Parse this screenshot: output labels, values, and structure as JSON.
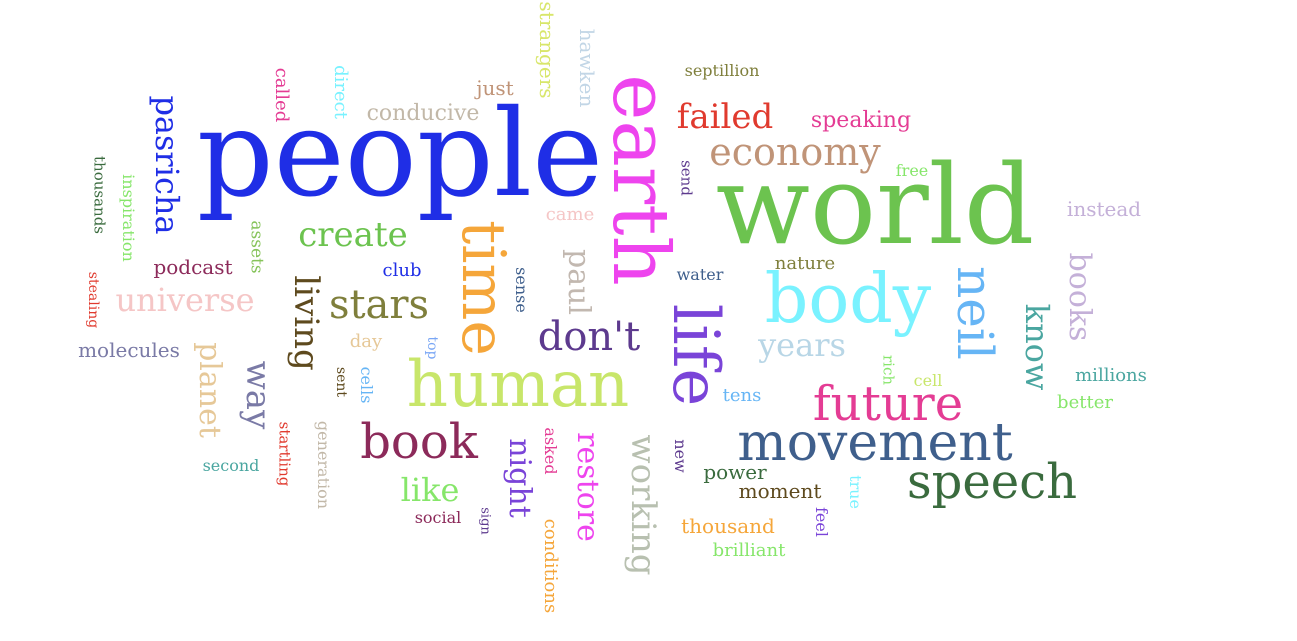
{
  "words": [
    {
      "text": "people",
      "color": "#1f2ee6"
    },
    {
      "text": "world",
      "color": "#6cc34f"
    },
    {
      "text": "earth",
      "color": "#ee44ee"
    },
    {
      "text": "life",
      "color": "#7a44d8"
    },
    {
      "text": "human",
      "color": "#c8e66a"
    },
    {
      "text": "body",
      "color": "#79f2ff"
    },
    {
      "text": "time",
      "color": "#f5a63a"
    },
    {
      "text": "movement",
      "color": "#3f5f8c"
    },
    {
      "text": "speech",
      "color": "#3a6b3e"
    },
    {
      "text": "future",
      "color": "#e43c94"
    },
    {
      "text": "book",
      "color": "#8c2a5a"
    },
    {
      "text": "neil",
      "color": "#66b5f5"
    },
    {
      "text": "stars",
      "color": "#7f7f3c"
    },
    {
      "text": "don't",
      "color": "#5d3a8e"
    },
    {
      "text": "economy",
      "color": "#c09478"
    },
    {
      "text": "pasricha",
      "color": "#1f2ee6"
    },
    {
      "text": "failed",
      "color": "#e03a2e"
    },
    {
      "text": "create",
      "color": "#6cc34f"
    },
    {
      "text": "living",
      "color": "#5e4a1e"
    },
    {
      "text": "universe",
      "color": "#f5c6c6"
    },
    {
      "text": "working",
      "color": "#b8c0b0"
    },
    {
      "text": "restore",
      "color": "#ee44ee"
    },
    {
      "text": "paul",
      "color": "#c2b8b0"
    },
    {
      "text": "night",
      "color": "#7a44d8"
    },
    {
      "text": "know",
      "color": "#4aa6a0"
    },
    {
      "text": "books",
      "color": "#c4b0d8"
    },
    {
      "text": "years",
      "color": "#b8d6e6"
    },
    {
      "text": "planet",
      "color": "#e6c898"
    },
    {
      "text": "way",
      "color": "#7a7aa6"
    },
    {
      "text": "like",
      "color": "#86e66a"
    },
    {
      "text": "speaking",
      "color": "#e43c94"
    },
    {
      "text": "conducive",
      "color": "#c2b8a8"
    },
    {
      "text": "hawken",
      "color": "#c2d6e6"
    },
    {
      "text": "strangers",
      "color": "#d8e66a"
    },
    {
      "text": "septillion",
      "color": "#7f7f3c"
    },
    {
      "text": "just",
      "color": "#c09478"
    },
    {
      "text": "called",
      "color": "#e43c94"
    },
    {
      "text": "direct",
      "color": "#79f2ff"
    },
    {
      "text": "thousands",
      "color": "#3a6b3e"
    },
    {
      "text": "inspiration",
      "color": "#86e66a"
    },
    {
      "text": "assets",
      "color": "#86c35a"
    },
    {
      "text": "podcast",
      "color": "#8c2a5a"
    },
    {
      "text": "club",
      "color": "#1f2ee6"
    },
    {
      "text": "came",
      "color": "#f5c6c6"
    },
    {
      "text": "send",
      "color": "#5d3a8e"
    },
    {
      "text": "free",
      "color": "#86e66a"
    },
    {
      "text": "instead",
      "color": "#c4b0d8"
    },
    {
      "text": "water",
      "color": "#3f5f8c"
    },
    {
      "text": "nature",
      "color": "#7f7f3c"
    },
    {
      "text": "sense",
      "color": "#3f5f8c"
    },
    {
      "text": "day",
      "color": "#e6c898"
    },
    {
      "text": "top",
      "color": "#79a6f5"
    },
    {
      "text": "sent",
      "color": "#5e4a1e"
    },
    {
      "text": "cells",
      "color": "#66b5f5"
    },
    {
      "text": "molecules",
      "color": "#7a7aa6"
    },
    {
      "text": "stealing",
      "color": "#e03a2e"
    },
    {
      "text": "second",
      "color": "#4aa6a0"
    },
    {
      "text": "startling",
      "color": "#e03a2e"
    },
    {
      "text": "generation",
      "color": "#c2b8a8"
    },
    {
      "text": "rich",
      "color": "#86e66a"
    },
    {
      "text": "cell",
      "color": "#c8e66a"
    },
    {
      "text": "millions",
      "color": "#4aa6a0"
    },
    {
      "text": "better",
      "color": "#86e66a"
    },
    {
      "text": "tens",
      "color": "#66b5f5"
    },
    {
      "text": "new",
      "color": "#5d3a8e"
    },
    {
      "text": "power",
      "color": "#3a6b3e"
    },
    {
      "text": "moment",
      "color": "#5e4a1e"
    },
    {
      "text": "true",
      "color": "#79f2ff"
    },
    {
      "text": "feel",
      "color": "#7a44d8"
    },
    {
      "text": "asked",
      "color": "#e43c94"
    },
    {
      "text": "sign",
      "color": "#5d3a8e"
    },
    {
      "text": "social",
      "color": "#8c2a5a"
    },
    {
      "text": "conditions",
      "color": "#f5a63a"
    },
    {
      "text": "thousand",
      "color": "#f5a63a"
    },
    {
      "text": "brilliant",
      "color": "#86e66a"
    }
  ]
}
